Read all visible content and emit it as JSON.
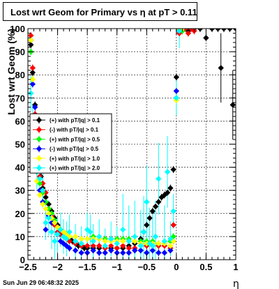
{
  "title": "Lost wrt Geom for Primary vs   η  at pT > 0.11",
  "timestamp": "Sun Jun 29 06:48:32 2025",
  "chart_data": {
    "type": "scatter",
    "xlabel": "η",
    "ylabel": "Lost wrt Geom (%)",
    "xlim": [
      -2.5,
      1.0
    ],
    "ylim": [
      0,
      100
    ],
    "x_ticks": [
      "−2.5",
      "−2",
      "−1.5",
      "−1",
      "−0.5",
      "0",
      "0.5",
      "1"
    ],
    "y_ticks": [
      "0",
      "10",
      "20",
      "30",
      "40",
      "50",
      "60",
      "70",
      "80",
      "90",
      "100"
    ],
    "grid": true,
    "legend_position": "left-middle",
    "marker_colors": {
      "black": "#000000",
      "red": "#ff0000",
      "green": "#00ff00",
      "blue": "#0000ff",
      "yellow": "#ffff00",
      "cyan": "#00ffff"
    },
    "series": [
      {
        "name": "(+) with pT/|q| > 0.1",
        "color": "#000000",
        "points": [
          [
            -2.45,
            93
          ],
          [
            -2.42,
            81
          ],
          [
            -2.38,
            67
          ],
          [
            -2.35,
            55
          ],
          [
            -2.32,
            46
          ],
          [
            -2.28,
            36
          ],
          [
            -2.25,
            31
          ],
          [
            -2.2,
            27
          ],
          [
            -2.15,
            24
          ],
          [
            -2.1,
            21
          ],
          [
            -2.05,
            18
          ],
          [
            -2.0,
            15
          ],
          [
            -1.95,
            13
          ],
          [
            -1.9,
            12
          ],
          [
            -1.85,
            10
          ],
          [
            -1.8,
            9
          ],
          [
            -1.75,
            8
          ],
          [
            -1.7,
            7
          ],
          [
            -1.65,
            6
          ],
          [
            -1.6,
            6
          ],
          [
            -1.55,
            5
          ],
          [
            -1.5,
            5
          ],
          [
            -1.4,
            5
          ],
          [
            -1.3,
            5
          ],
          [
            -1.2,
            5
          ],
          [
            -1.1,
            5
          ],
          [
            -1.0,
            5
          ],
          [
            -0.9,
            5
          ],
          [
            -0.8,
            6
          ],
          [
            -0.7,
            7
          ],
          [
            -0.6,
            9
          ],
          [
            -0.55,
            12
          ],
          [
            -0.5,
            15
          ],
          [
            -0.45,
            18
          ],
          [
            -0.4,
            21
          ],
          [
            -0.35,
            23
          ],
          [
            -0.3,
            25
          ],
          [
            -0.25,
            27
          ],
          [
            -0.2,
            28
          ],
          [
            -0.15,
            29
          ],
          [
            -0.1,
            31
          ],
          [
            -0.05,
            39
          ],
          [
            0.0,
            79
          ],
          [
            0.05,
            99
          ],
          [
            0.1,
            100
          ],
          [
            0.2,
            99
          ],
          [
            0.3,
            100
          ],
          [
            0.4,
            100
          ],
          [
            0.5,
            96
          ],
          [
            0.6,
            100
          ],
          [
            0.7,
            100
          ],
          [
            0.75,
            83
          ],
          [
            0.8,
            100
          ],
          [
            0.9,
            100
          ],
          [
            0.95,
            67
          ],
          [
            1.0,
            100
          ]
        ]
      },
      {
        "name": "(-) with pT/|q| > 0.1",
        "color": "#ff0000",
        "points": [
          [
            -2.45,
            97
          ],
          [
            -2.42,
            83
          ],
          [
            -2.38,
            63
          ],
          [
            -2.35,
            43
          ],
          [
            -2.3,
            36
          ],
          [
            -2.25,
            33
          ],
          [
            -2.2,
            29
          ],
          [
            -2.15,
            22
          ],
          [
            -2.1,
            19
          ],
          [
            -2.05,
            15
          ],
          [
            -2.0,
            12
          ],
          [
            -1.95,
            11
          ],
          [
            -1.9,
            10
          ],
          [
            -1.85,
            9
          ],
          [
            -1.8,
            8
          ],
          [
            -1.7,
            7
          ],
          [
            -1.6,
            6
          ],
          [
            -1.5,
            6
          ],
          [
            -1.4,
            6
          ],
          [
            -1.3,
            6
          ],
          [
            -1.2,
            5
          ],
          [
            -1.1,
            6
          ],
          [
            -1.0,
            5
          ],
          [
            -0.9,
            6
          ],
          [
            -0.8,
            5
          ],
          [
            -0.7,
            5
          ],
          [
            -0.6,
            6
          ],
          [
            -0.5,
            6
          ],
          [
            -0.4,
            6
          ],
          [
            -0.3,
            6
          ],
          [
            -0.2,
            6
          ],
          [
            -0.1,
            5
          ],
          [
            -0.05,
            15
          ],
          [
            0.05,
            98
          ],
          [
            0.1,
            99
          ],
          [
            0.15,
            100
          ],
          [
            0.2,
            98
          ],
          [
            0.25,
            100
          ],
          [
            0.3,
            99
          ]
        ]
      },
      {
        "name": "(+) with pT/|q| > 0.5",
        "color": "#00ff00",
        "points": [
          [
            -2.45,
            90
          ],
          [
            -2.42,
            78
          ],
          [
            -2.38,
            51
          ],
          [
            -2.35,
            38
          ],
          [
            -2.3,
            33
          ],
          [
            -2.25,
            29
          ],
          [
            -2.2,
            25
          ],
          [
            -2.15,
            22
          ],
          [
            -2.1,
            20
          ],
          [
            -2.05,
            17
          ],
          [
            -2.0,
            14
          ],
          [
            -1.95,
            13
          ],
          [
            -1.9,
            12
          ],
          [
            -1.85,
            11
          ],
          [
            -1.8,
            10
          ],
          [
            -1.7,
            10
          ],
          [
            -1.6,
            9
          ],
          [
            -1.5,
            9
          ],
          [
            -1.4,
            10
          ],
          [
            -1.3,
            9
          ],
          [
            -1.2,
            9
          ],
          [
            -1.1,
            9
          ],
          [
            -1.0,
            9
          ],
          [
            -0.9,
            9
          ],
          [
            -0.8,
            9
          ],
          [
            -0.7,
            8
          ],
          [
            -0.6,
            8
          ],
          [
            -0.5,
            8
          ],
          [
            -0.4,
            8
          ],
          [
            -0.3,
            7
          ],
          [
            -0.2,
            7
          ],
          [
            -0.1,
            8
          ],
          [
            -0.05,
            10
          ],
          [
            0.0,
            70
          ],
          [
            0.05,
            100
          ],
          [
            0.1,
            99
          ]
        ]
      },
      {
        "name": "(-) with pT/|q| > 0.5",
        "color": "#0000ff",
        "points": [
          [
            -2.45,
            95
          ],
          [
            -2.42,
            76
          ],
          [
            -2.38,
            66
          ],
          [
            -2.35,
            43
          ],
          [
            -2.3,
            30
          ],
          [
            -2.25,
            25
          ],
          [
            -2.2,
            13
          ],
          [
            -2.15,
            19
          ],
          [
            -2.1,
            16
          ],
          [
            -2.0,
            11
          ],
          [
            -1.95,
            8
          ],
          [
            -1.9,
            7
          ],
          [
            -1.85,
            6
          ],
          [
            -1.8,
            5
          ],
          [
            -1.7,
            4
          ],
          [
            -1.6,
            3
          ],
          [
            -1.5,
            3
          ],
          [
            -1.4,
            4
          ],
          [
            -1.3,
            3
          ],
          [
            -1.2,
            3
          ],
          [
            -1.1,
            4
          ],
          [
            -1.0,
            3
          ],
          [
            -0.9,
            3
          ],
          [
            -0.8,
            3
          ],
          [
            -0.7,
            4
          ],
          [
            -0.6,
            4
          ],
          [
            -0.5,
            3
          ],
          [
            -0.4,
            4
          ],
          [
            -0.3,
            3
          ],
          [
            -0.2,
            3
          ],
          [
            -0.1,
            4
          ],
          [
            -0.05,
            8
          ],
          [
            0.0,
            73
          ],
          [
            0.05,
            99
          ],
          [
            0.1,
            100
          ]
        ]
      },
      {
        "name": "(+) with pT/|q| > 1.0",
        "color": "#ffff00",
        "points": [
          [
            -2.45,
            95
          ],
          [
            -2.42,
            78
          ],
          [
            -2.38,
            45
          ],
          [
            -2.35,
            34
          ],
          [
            -2.3,
            28
          ],
          [
            -2.25,
            24
          ],
          [
            -2.2,
            22
          ],
          [
            -2.15,
            20
          ],
          [
            -2.1,
            18
          ],
          [
            -2.05,
            16
          ],
          [
            -2.0,
            14
          ],
          [
            -1.95,
            13
          ],
          [
            -1.9,
            12
          ],
          [
            -1.85,
            11
          ],
          [
            -1.8,
            10
          ],
          [
            -1.7,
            10
          ],
          [
            -1.6,
            9
          ],
          [
            -1.5,
            9
          ],
          [
            -1.4,
            9
          ],
          [
            -1.3,
            9
          ],
          [
            -1.2,
            8
          ],
          [
            -1.1,
            8
          ],
          [
            -1.0,
            8
          ],
          [
            -0.9,
            8
          ],
          [
            -0.8,
            8
          ],
          [
            -0.7,
            8
          ],
          [
            -0.6,
            7
          ],
          [
            -0.5,
            7
          ],
          [
            -0.4,
            7
          ],
          [
            -0.3,
            7
          ],
          [
            -0.2,
            7
          ],
          [
            -0.1,
            6
          ],
          [
            -0.05,
            8
          ],
          [
            0.0,
            69
          ],
          [
            0.05,
            100
          ],
          [
            0.1,
            100
          ]
        ]
      },
      {
        "name": "(+) with pT/|q| > 2.0",
        "color": "#00ffff",
        "points": [
          [
            -2.45,
            72
          ],
          [
            -2.42,
            60
          ],
          [
            -2.38,
            48
          ],
          [
            -2.35,
            38
          ],
          [
            -2.3,
            35
          ],
          [
            -2.25,
            30
          ],
          [
            -2.2,
            16
          ],
          [
            -2.15,
            18
          ],
          [
            -2.1,
            12
          ],
          [
            -2.05,
            8
          ],
          [
            -2.0,
            11
          ],
          [
            -1.95,
            13
          ],
          [
            -1.9,
            10
          ],
          [
            -1.85,
            9
          ],
          [
            -1.8,
            12
          ],
          [
            -1.7,
            8
          ],
          [
            -1.6,
            7
          ],
          [
            -1.5,
            13
          ],
          [
            -1.45,
            12
          ],
          [
            -1.4,
            8
          ],
          [
            -1.3,
            10
          ],
          [
            -1.2,
            6
          ],
          [
            -1.1,
            9
          ],
          [
            -1.0,
            7
          ],
          [
            -0.9,
            13
          ],
          [
            -0.8,
            8
          ],
          [
            -0.7,
            10
          ],
          [
            -0.6,
            6
          ],
          [
            -0.55,
            12
          ],
          [
            -0.5,
            25
          ],
          [
            -0.45,
            7
          ],
          [
            -0.4,
            6
          ],
          [
            -0.35,
            10
          ],
          [
            -0.3,
            35
          ],
          [
            -0.2,
            8
          ],
          [
            -0.15,
            38
          ],
          [
            -0.1,
            9
          ],
          [
            -0.05,
            21
          ],
          [
            0.0,
            70
          ],
          [
            0.05,
            99
          ]
        ]
      }
    ]
  }
}
